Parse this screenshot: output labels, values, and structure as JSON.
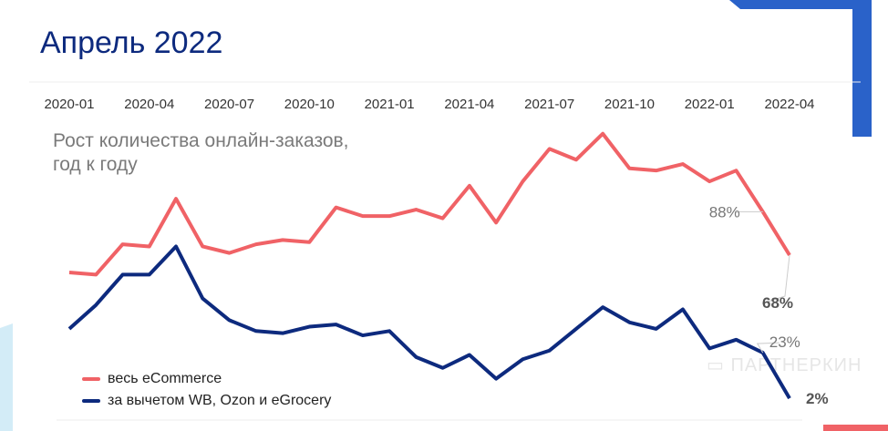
{
  "title": "Апрель 2022",
  "watermark": "ПАРТНЕРКИН",
  "chart_data": {
    "type": "line",
    "title": "Рост количества онлайн-заказов, год к году",
    "subtitle_lines": [
      "Рост количества онлайн-заказов,",
      "год к году"
    ],
    "x": [
      "2020-01",
      "2020-02",
      "2020-03",
      "2020-04",
      "2020-05",
      "2020-06",
      "2020-07",
      "2020-08",
      "2020-09",
      "2020-10",
      "2020-11",
      "2020-12",
      "2021-01",
      "2021-02",
      "2021-03",
      "2021-04",
      "2021-05",
      "2021-06",
      "2021-07",
      "2021-08",
      "2021-09",
      "2021-10",
      "2021-11",
      "2021-12",
      "2022-01",
      "2022-02",
      "2022-03",
      "2022-04"
    ],
    "tick_labels": [
      "2020-01",
      "2020-04",
      "2020-07",
      "2020-10",
      "2021-01",
      "2021-04",
      "2021-07",
      "2021-10",
      "2022-01",
      "2022-04"
    ],
    "xlabel": "",
    "ylabel": "",
    "unit": "%",
    "series": [
      {
        "name": "весь eCommerce",
        "color": "#f06266",
        "values": [
          60,
          59,
          73,
          72,
          94,
          72,
          69,
          73,
          75,
          74,
          90,
          86,
          86,
          89,
          85,
          100,
          83,
          102,
          117,
          112,
          124,
          108,
          107,
          110,
          102,
          107,
          88,
          68
        ]
      },
      {
        "name": "за вычетом WB, Ozon и eGrocery",
        "color": "#0d2a7e",
        "values": [
          34,
          45,
          59,
          59,
          72,
          48,
          38,
          33,
          32,
          35,
          36,
          31,
          33,
          21,
          16,
          22,
          11,
          20,
          24,
          34,
          44,
          37,
          34,
          43,
          25,
          29,
          23,
          2
        ]
      }
    ],
    "annotations": [
      {
        "series": 0,
        "index": 26,
        "text": "88%",
        "bold": false
      },
      {
        "series": 0,
        "index": 27,
        "text": "68%",
        "bold": true
      },
      {
        "series": 1,
        "index": 26,
        "text": "23%",
        "bold": false
      },
      {
        "series": 1,
        "index": 27,
        "text": "2%",
        "bold": true
      }
    ],
    "legend": "bottom-left",
    "grid": false
  }
}
